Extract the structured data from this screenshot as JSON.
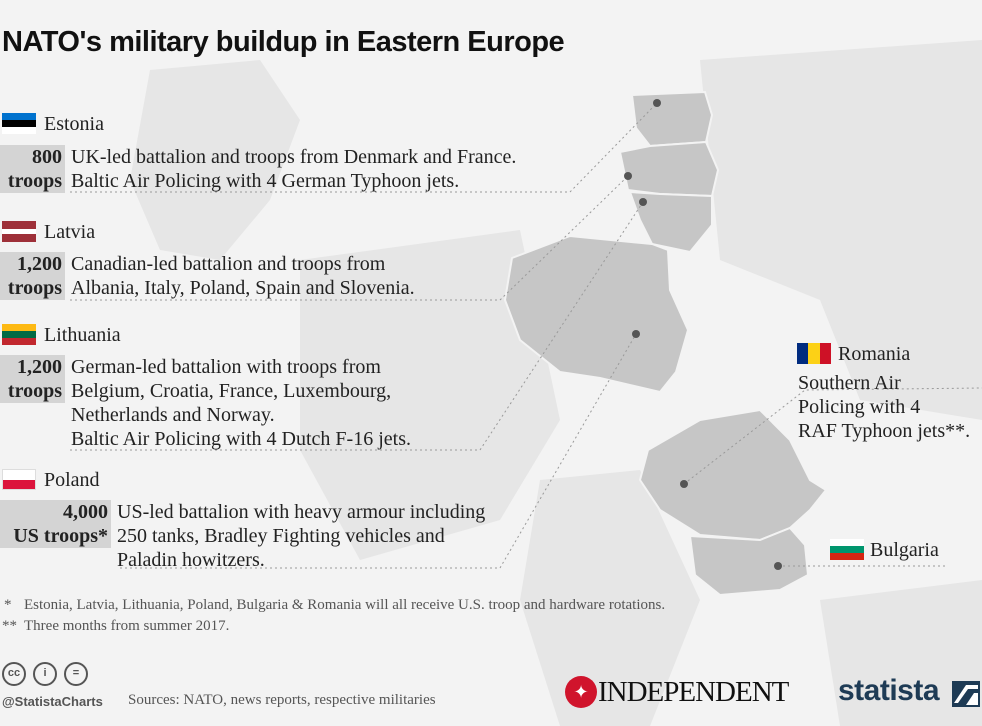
{
  "title": "NATO's military buildup in Eastern Europe",
  "countries": [
    {
      "name": "Estonia",
      "troops_value": "800",
      "troops_unit": "troops",
      "description": [
        "UK-led battalion and troops from Denmark and France.",
        "Baltic Air Policing with 4 German Typhoon jets."
      ],
      "flag": [
        "#0072ce",
        "#000000",
        "#ffffff"
      ]
    },
    {
      "name": "Latvia",
      "troops_value": "1,200",
      "troops_unit": "troops",
      "description": [
        "Canadian-led battalion and troops from",
        "Albania, Italy, Poland, Spain and Slovenia."
      ],
      "flag": [
        "#9e3039",
        "#ffffff",
        "#9e3039"
      ]
    },
    {
      "name": "Lithuania",
      "troops_value": "1,200",
      "troops_unit": "troops",
      "description": [
        "German-led battalion with troops from",
        "Belgium, Croatia, France, Luxembourg,",
        "Netherlands and Norway.",
        "Baltic Air Policing with 4 Dutch F-16 jets."
      ],
      "flag": [
        "#fdb913",
        "#006a44",
        "#c1272d"
      ]
    },
    {
      "name": "Poland",
      "troops_value": "4,000",
      "troops_unit": "US troops*",
      "description": [
        "US-led battalion with heavy armour including",
        "250 tanks, Bradley Fighting vehicles and",
        "Paladin howitzers."
      ],
      "flag": [
        "#ffffff",
        "#dc143c"
      ]
    },
    {
      "name": "Romania",
      "description": [
        "Southern Air",
        "Policing with 4",
        "RAF Typhoon jets**."
      ],
      "flag": [
        "#002b7f",
        "#fcd116",
        "#ce1126"
      ]
    },
    {
      "name": "Bulgaria",
      "flag": [
        "#ffffff",
        "#00966e",
        "#d62612"
      ]
    }
  ],
  "footnotes": [
    "*",
    "Estonia, Latvia, Lithuania, Poland, Bulgaria & Romania will all receive U.S. troop and hardware rotations.",
    "**",
    "Three months from summer 2017."
  ],
  "footer": {
    "handle": "@StatistaCharts",
    "sources": "Sources: NATO, news reports, respective militaries",
    "publisher": "INDEPENDENT",
    "brand": "statista",
    "license_icons": [
      "cc-icon",
      "attribution-icon",
      "no-derivatives-icon"
    ]
  },
  "colors": {
    "country_fill": "#c8c8c8",
    "background": "#f3f3f3",
    "troops_box": "#d4d4d4",
    "independent_red": "#d0142c",
    "statista_navy": "#1e3b55"
  }
}
